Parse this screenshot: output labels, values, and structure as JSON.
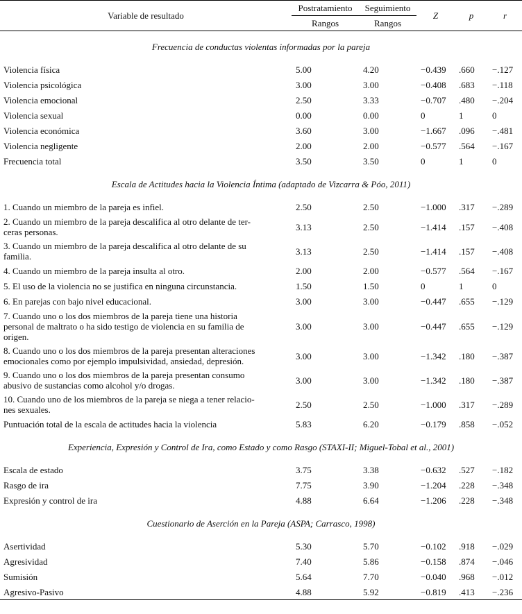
{
  "header": {
    "variable": "Variable de resultado",
    "postratamiento": "Postratamiento",
    "seguimiento": "Seguimiento",
    "rangos_post": "Rangos",
    "rangos_seg": "Rangos",
    "z": "Z",
    "p": "p",
    "r": "r"
  },
  "sections": [
    {
      "title": "Frecuencia de conductas violentas informadas por la pareja",
      "rows": [
        {
          "label": [
            "Violencia física"
          ],
          "post": "5.00",
          "seg": "4.20",
          "z": "−0.439",
          "p": ".660",
          "r": "−.127"
        },
        {
          "label": [
            "Violencia psicológica"
          ],
          "post": "3.00",
          "seg": "3.00",
          "z": "−0.408",
          "p": ".683",
          "r": "−.118"
        },
        {
          "label": [
            "Violencia emocional"
          ],
          "post": "2.50",
          "seg": "3.33",
          "z": "−0.707",
          "p": ".480",
          "r": "−.204"
        },
        {
          "label": [
            "Violencia sexual"
          ],
          "post": "0.00",
          "seg": "0.00",
          "z": "0",
          "p": "1",
          "r": "0"
        },
        {
          "label": [
            "Violencia económica"
          ],
          "post": "3.60",
          "seg": "3.00",
          "z": "−1.667",
          "p": ".096",
          "r": "−.481"
        },
        {
          "label": [
            "Violencia negligente"
          ],
          "post": "2.00",
          "seg": "2.00",
          "z": "−0.577",
          "p": ".564",
          "r": "−.167"
        },
        {
          "label": [
            "Frecuencia total"
          ],
          "post": "3.50",
          "seg": "3.50",
          "z": "0",
          "p": "1",
          "r": "0"
        }
      ]
    },
    {
      "title": "Escala de Actitudes hacia la Violencia Íntima (adaptado de Vizcarra & Póo, 2011)",
      "rows": [
        {
          "label": [
            "1. Cuando un miembro de la pareja es infiel."
          ],
          "post": "2.50",
          "seg": "2.50",
          "z": "−1.000",
          "p": ".317",
          "r": "−.289"
        },
        {
          "label": [
            "2. Cuando un miembro de la pareja descalifica al otro delante de ter-",
            "ceras personas."
          ],
          "post": "3.13",
          "seg": "2.50",
          "z": "−1.414",
          "p": ".157",
          "r": "−.408"
        },
        {
          "label": [
            "3. Cuando un miembro de la pareja descalifica al otro delante de su",
            "familia."
          ],
          "post": "3.13",
          "seg": "2.50",
          "z": "−1.414",
          "p": ".157",
          "r": "−.408"
        },
        {
          "label": [
            "4. Cuando un miembro de la pareja insulta al otro."
          ],
          "post": "2.00",
          "seg": "2.00",
          "z": "−0.577",
          "p": ".564",
          "r": "−.167"
        },
        {
          "label": [
            "5. El uso de la violencia no se justifica en ninguna circunstancia."
          ],
          "post": "1.50",
          "seg": "1.50",
          "z": "0",
          "p": "1",
          "r": "0"
        },
        {
          "label": [
            "6. En parejas con bajo nivel educacional."
          ],
          "post": "3.00",
          "seg": "3.00",
          "z": "−0.447",
          "p": ".655",
          "r": "−.129"
        },
        {
          "label": [
            "7. Cuando uno o los dos miembros de la pareja tiene una historia",
            "personal de maltrato o ha sido testigo de violencia en su familia de",
            "origen."
          ],
          "post": "3.00",
          "seg": "3.00",
          "z": "−0.447",
          "p": ".655",
          "r": "−.129"
        },
        {
          "label": [
            "8. Cuando uno o los dos miembros de la pareja presentan alteraciones",
            "emocionales como por ejemplo impulsividad, ansiedad, depresión."
          ],
          "post": "3.00",
          "seg": "3.00",
          "z": "−1.342",
          "p": ".180",
          "r": "−.387"
        },
        {
          "label": [
            "9. Cuando uno o los dos miembros de la pareja presentan consumo",
            "abusivo de sustancias como alcohol y/o drogas."
          ],
          "post": "3.00",
          "seg": "3.00",
          "z": "−1.342",
          "p": ".180",
          "r": "−.387"
        },
        {
          "label": [
            "10. Cuando uno de los miembros de la pareja se niega a tener relacio-",
            "nes sexuales."
          ],
          "post": "2.50",
          "seg": "2.50",
          "z": "−1.000",
          "p": ".317",
          "r": "−.289"
        },
        {
          "label": [
            "Puntuación total de la escala de actitudes hacia la violencia"
          ],
          "post": "5.83",
          "seg": "6.20",
          "z": "−0.179",
          "p": ".858",
          "r": "−.052"
        }
      ]
    },
    {
      "title": "Experiencia, Expresión y Control de Ira, como Estado y como Rasgo (STAXI-II; Miguel-Tobal et al., 2001)",
      "rows": [
        {
          "label": [
            "Escala de estado"
          ],
          "post": "3.75",
          "seg": "3.38",
          "z": "−0.632",
          "p": ".527",
          "r": "−.182"
        },
        {
          "label": [
            "Rasgo de ira"
          ],
          "post": "7.75",
          "seg": "3.90",
          "z": "−1.204",
          "p": ".228",
          "r": "−.348"
        },
        {
          "label": [
            "Expresión y control de ira"
          ],
          "post": "4.88",
          "seg": "6.64",
          "z": "−1.206",
          "p": ".228",
          "r": "−.348"
        }
      ]
    },
    {
      "title": "Cuestionario de Aserción en la Pareja (ASPA; Carrasco, 1998)",
      "rows": [
        {
          "label": [
            "Asertividad"
          ],
          "post": "5.30",
          "seg": "5.70",
          "z": "−0.102",
          "p": ".918",
          "r": "−.029"
        },
        {
          "label": [
            "Agresividad"
          ],
          "post": "7.40",
          "seg": "5.86",
          "z": "−0.158",
          "p": ".874",
          "r": "−.046"
        },
        {
          "label": [
            "Sumisión"
          ],
          "post": "5.64",
          "seg": "7.70",
          "z": "−0.040",
          "p": ".968",
          "r": "−.012"
        },
        {
          "label": [
            "Agresivo-Pasivo"
          ],
          "post": "4.88",
          "seg": "5.92",
          "z": "−0.819",
          "p": ".413",
          "r": "−.236"
        }
      ]
    }
  ]
}
